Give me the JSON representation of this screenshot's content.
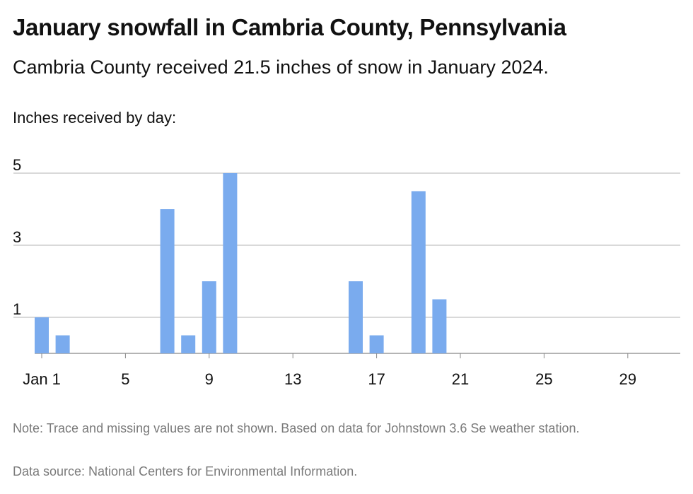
{
  "header": {
    "title": "January snowfall in Cambria County, Pennsylvania",
    "subtitle": "Cambria County received 21.5 inches of snow in January 2024.",
    "axis_caption": "Inches received by day:"
  },
  "footer": {
    "note": "Note: Trace and missing values are not shown. Based on data for Johnstown 3.6 Se weather station.",
    "source": "Data source: National Centers for Environmental Information."
  },
  "colors": {
    "bar": "#7aabee",
    "grid": "#b3b3b3",
    "baseline": "#888888"
  },
  "chart_data": {
    "type": "bar",
    "title": "January snowfall in Cambria County, Pennsylvania",
    "ylabel": "Inches received by day:",
    "xlabel": "",
    "ylim": [
      0,
      5
    ],
    "yticks": [
      1,
      3,
      5
    ],
    "xticks": [
      {
        "day": 1,
        "label": "Jan 1"
      },
      {
        "day": 5,
        "label": "5"
      },
      {
        "day": 9,
        "label": "9"
      },
      {
        "day": 13,
        "label": "13"
      },
      {
        "day": 17,
        "label": "17"
      },
      {
        "day": 21,
        "label": "21"
      },
      {
        "day": 25,
        "label": "25"
      },
      {
        "day": 29,
        "label": "29"
      }
    ],
    "grid": true,
    "days": [
      1,
      2,
      7,
      8,
      9,
      10,
      16,
      17,
      19,
      20
    ],
    "values": [
      1,
      0.5,
      4,
      0.5,
      2,
      5,
      2,
      0.5,
      4.5,
      1.5
    ]
  }
}
